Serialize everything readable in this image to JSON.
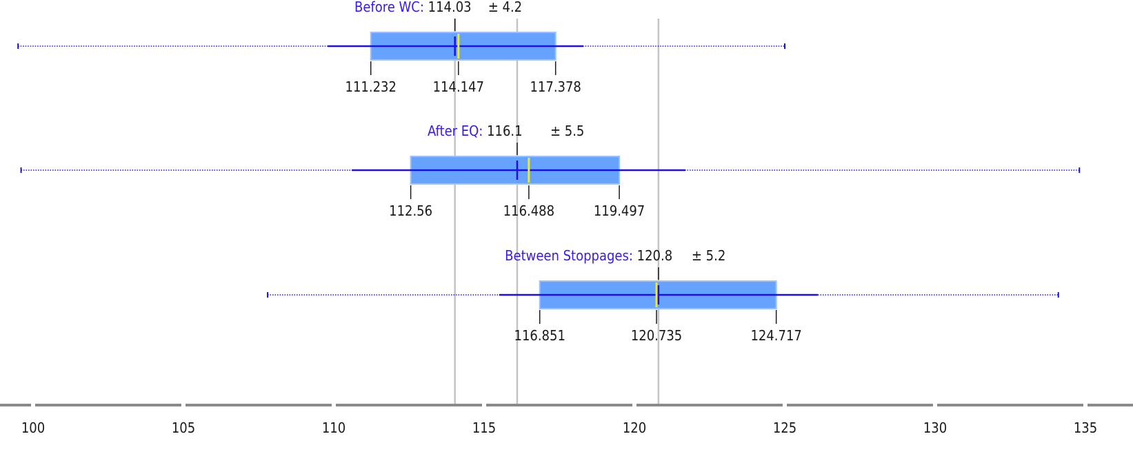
{
  "chart_data": {
    "type": "boxplot",
    "x_axis": {
      "min": 98.9,
      "max": 135,
      "ticks": [
        100,
        105,
        110,
        115,
        120,
        125,
        130,
        135
      ],
      "tick_labels": [
        "100",
        "105",
        "110",
        "115",
        "120",
        "125",
        "130",
        "135"
      ]
    },
    "colors": {
      "box": "#66a3ff",
      "box_edge": "#9cc2ff",
      "whisker": "#1c10e6",
      "median": "#f2ec1a",
      "label": "#3d1ae6",
      "reference_line": "#c4c4c4",
      "axis": "#8a8a8a"
    },
    "series": [
      {
        "name": "Before WC",
        "mean": 114.03,
        "mean_text": "114.03",
        "sd_text": "± 4.2",
        "q1": 111.232,
        "median": 114.147,
        "q3": 117.378,
        "q1_text": "111.232",
        "median_text": "114.147",
        "q3_text": "117.378",
        "whisker_low": 109.8,
        "whisker_high": 118.3,
        "min": 99.5,
        "max": 125.0
      },
      {
        "name": "After EQ",
        "mean": 116.1,
        "mean_text": "116.1",
        "sd_text": "± 5.5",
        "q1": 112.56,
        "median": 116.488,
        "q3": 119.497,
        "q1_text": "112.56",
        "median_text": "116.488",
        "q3_text": "119.497",
        "whisker_low": 110.6,
        "whisker_high": 121.7,
        "min": 99.6,
        "max": 134.8
      },
      {
        "name": "Between Stoppages",
        "mean": 120.8,
        "mean_text": "120.8",
        "sd_text": "± 5.2",
        "q1": 116.851,
        "median": 120.735,
        "q3": 124.717,
        "q1_text": "116.851",
        "median_text": "120.735",
        "q3_text": "124.717",
        "whisker_low": 115.5,
        "whisker_high": 126.1,
        "min": 107.8,
        "max": 134.1
      }
    ]
  }
}
